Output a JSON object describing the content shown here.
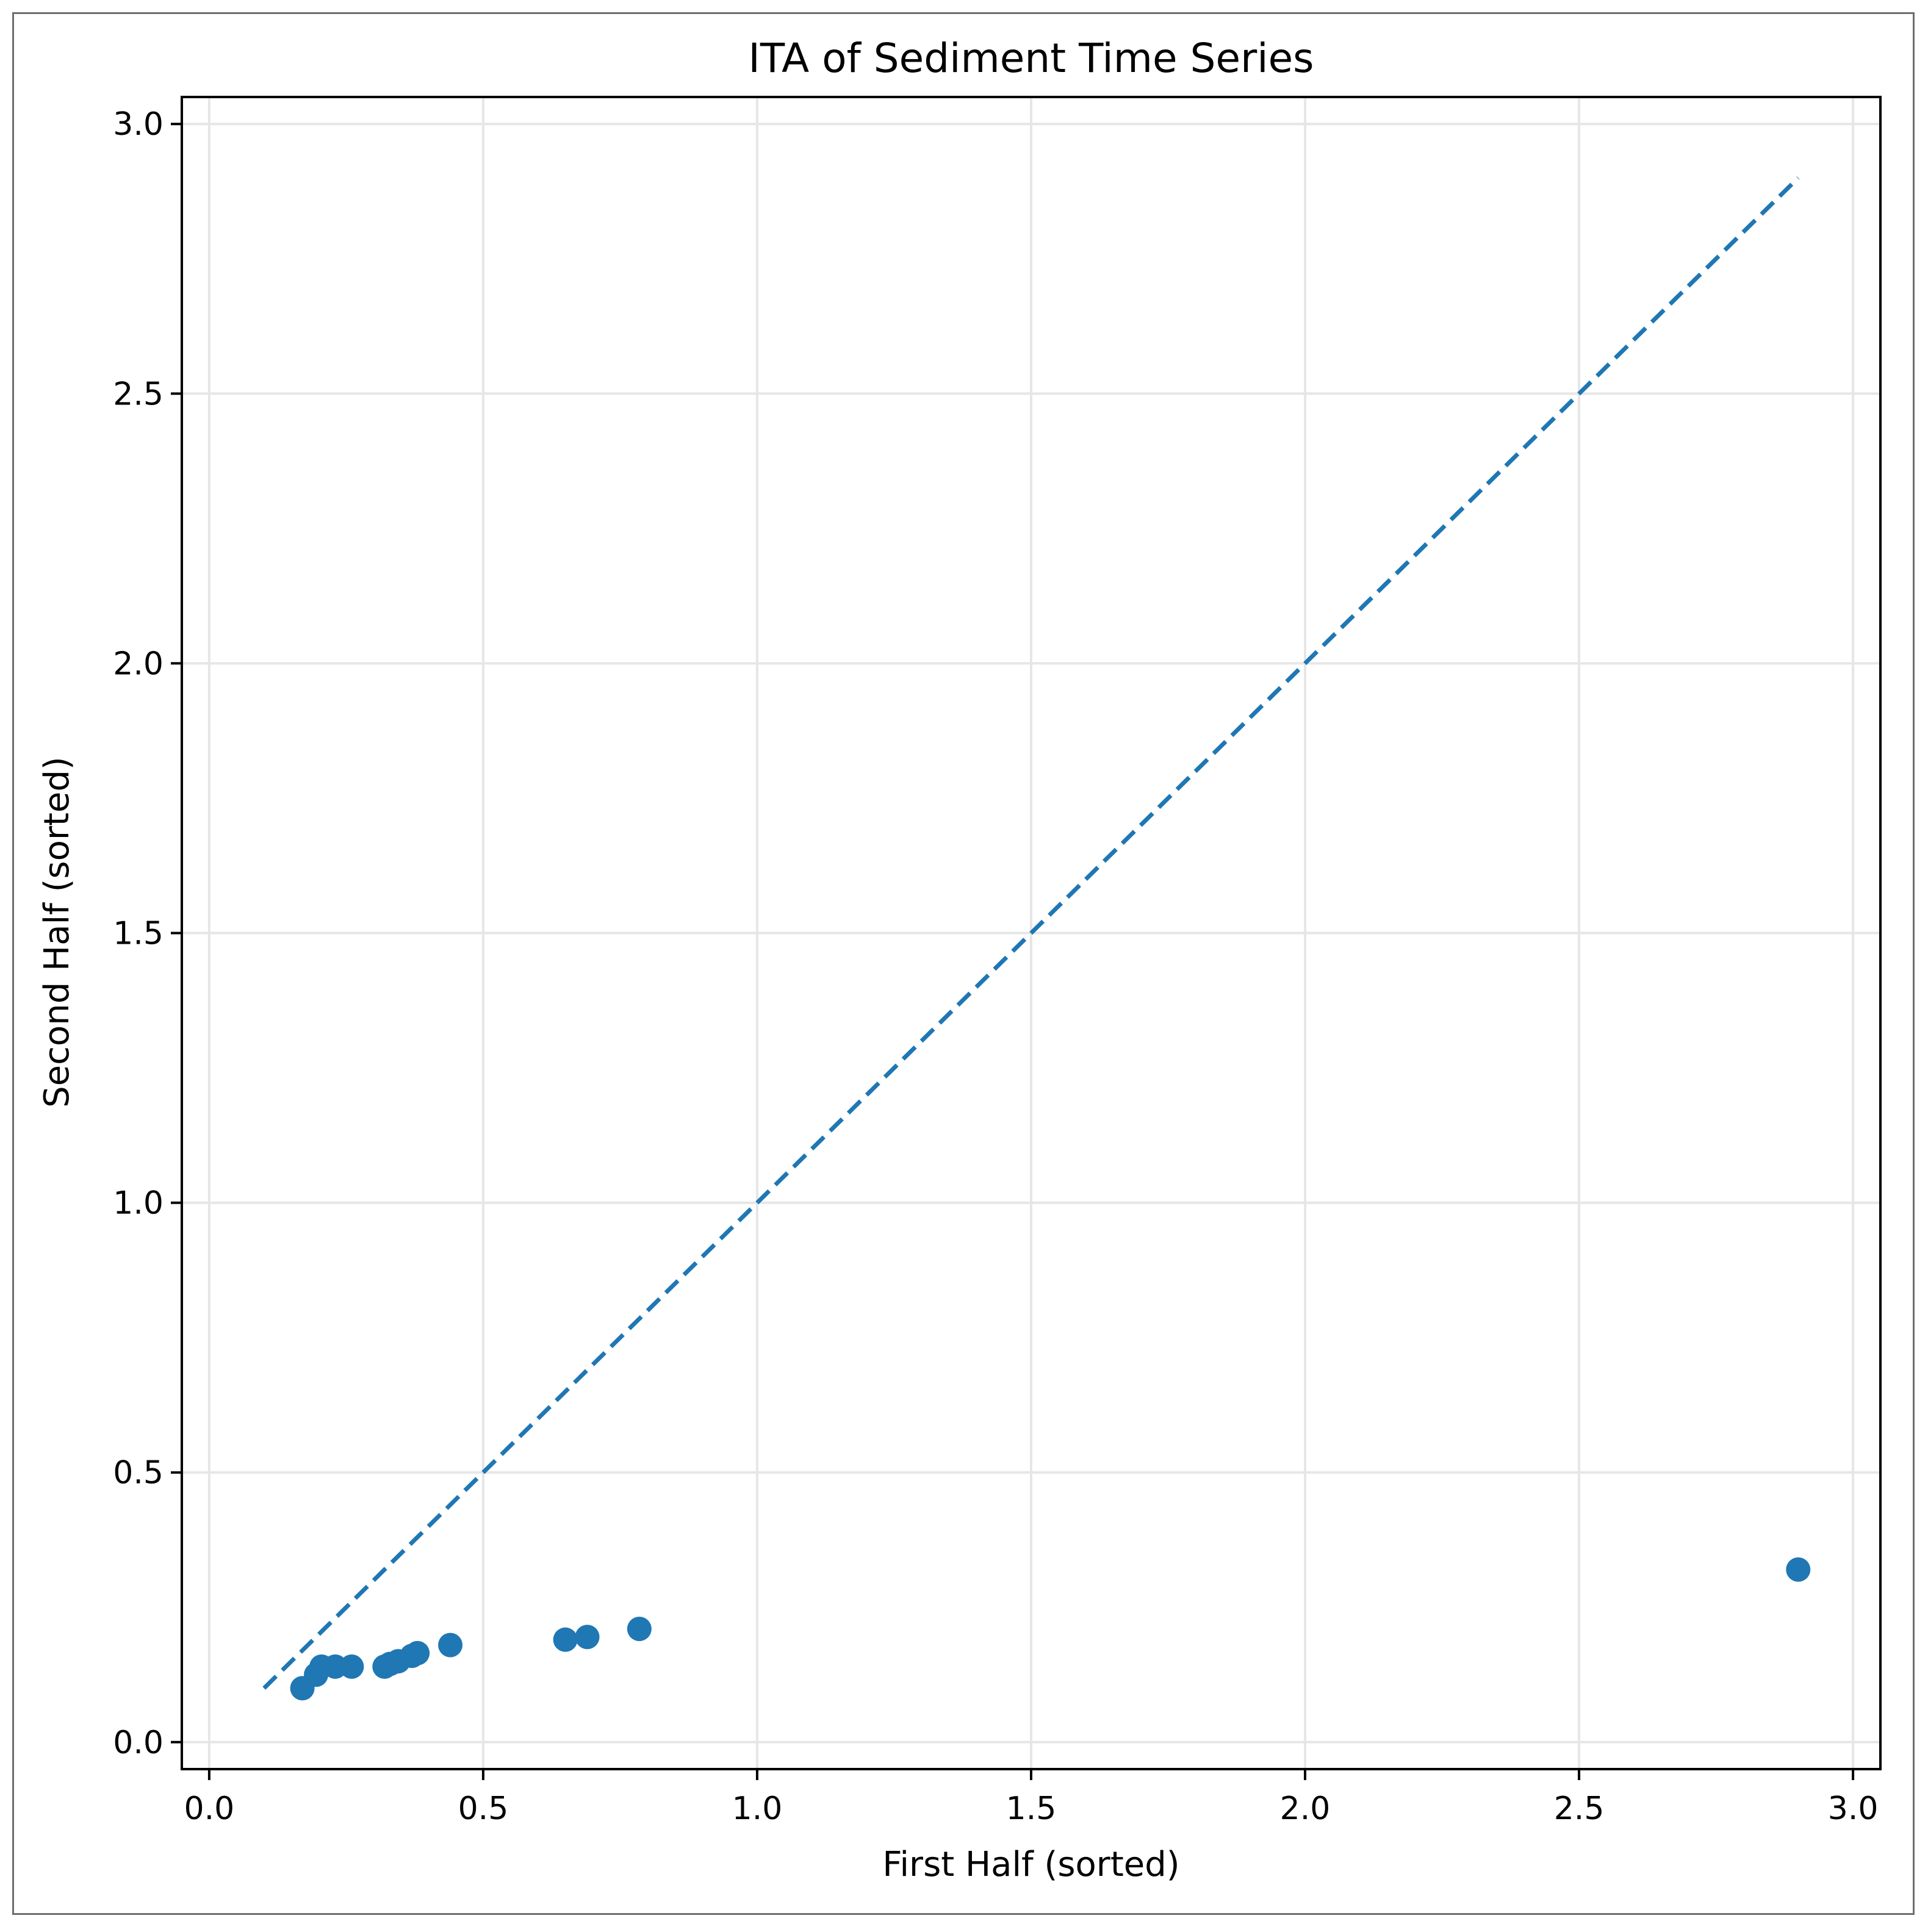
{
  "chart_data": {
    "type": "scatter",
    "title": "ITA of Sediment Time Series",
    "xlabel": "First Half (sorted)",
    "ylabel": "Second Half (sorted)",
    "xlim": [
      -0.05,
      3.05
    ],
    "ylim": [
      -0.05,
      3.05
    ],
    "xticks": [
      "0.0",
      "0.5",
      "1.0",
      "1.5",
      "2.0",
      "2.5",
      "3.0"
    ],
    "yticks": [
      "0.0",
      "0.5",
      "1.0",
      "1.5",
      "2.0",
      "2.5",
      "3.0"
    ],
    "grid": true,
    "colors": {
      "points": "#1f77b4",
      "reference_line": "#1f77b4",
      "grid": "#e6e6e6",
      "axes": "#000000"
    },
    "reference_line": {
      "style": "dashed",
      "x": [
        0.1,
        2.9
      ],
      "y": [
        0.1,
        2.9
      ]
    },
    "points": [
      {
        "x": 0.17,
        "y": 0.1
      },
      {
        "x": 0.195,
        "y": 0.125
      },
      {
        "x": 0.205,
        "y": 0.14
      },
      {
        "x": 0.23,
        "y": 0.14
      },
      {
        "x": 0.26,
        "y": 0.14
      },
      {
        "x": 0.32,
        "y": 0.14
      },
      {
        "x": 0.33,
        "y": 0.145
      },
      {
        "x": 0.345,
        "y": 0.15
      },
      {
        "x": 0.37,
        "y": 0.16
      },
      {
        "x": 0.38,
        "y": 0.165
      },
      {
        "x": 0.44,
        "y": 0.18
      },
      {
        "x": 0.65,
        "y": 0.19
      },
      {
        "x": 0.69,
        "y": 0.195
      },
      {
        "x": 0.785,
        "y": 0.21
      },
      {
        "x": 2.9,
        "y": 0.32
      }
    ]
  }
}
